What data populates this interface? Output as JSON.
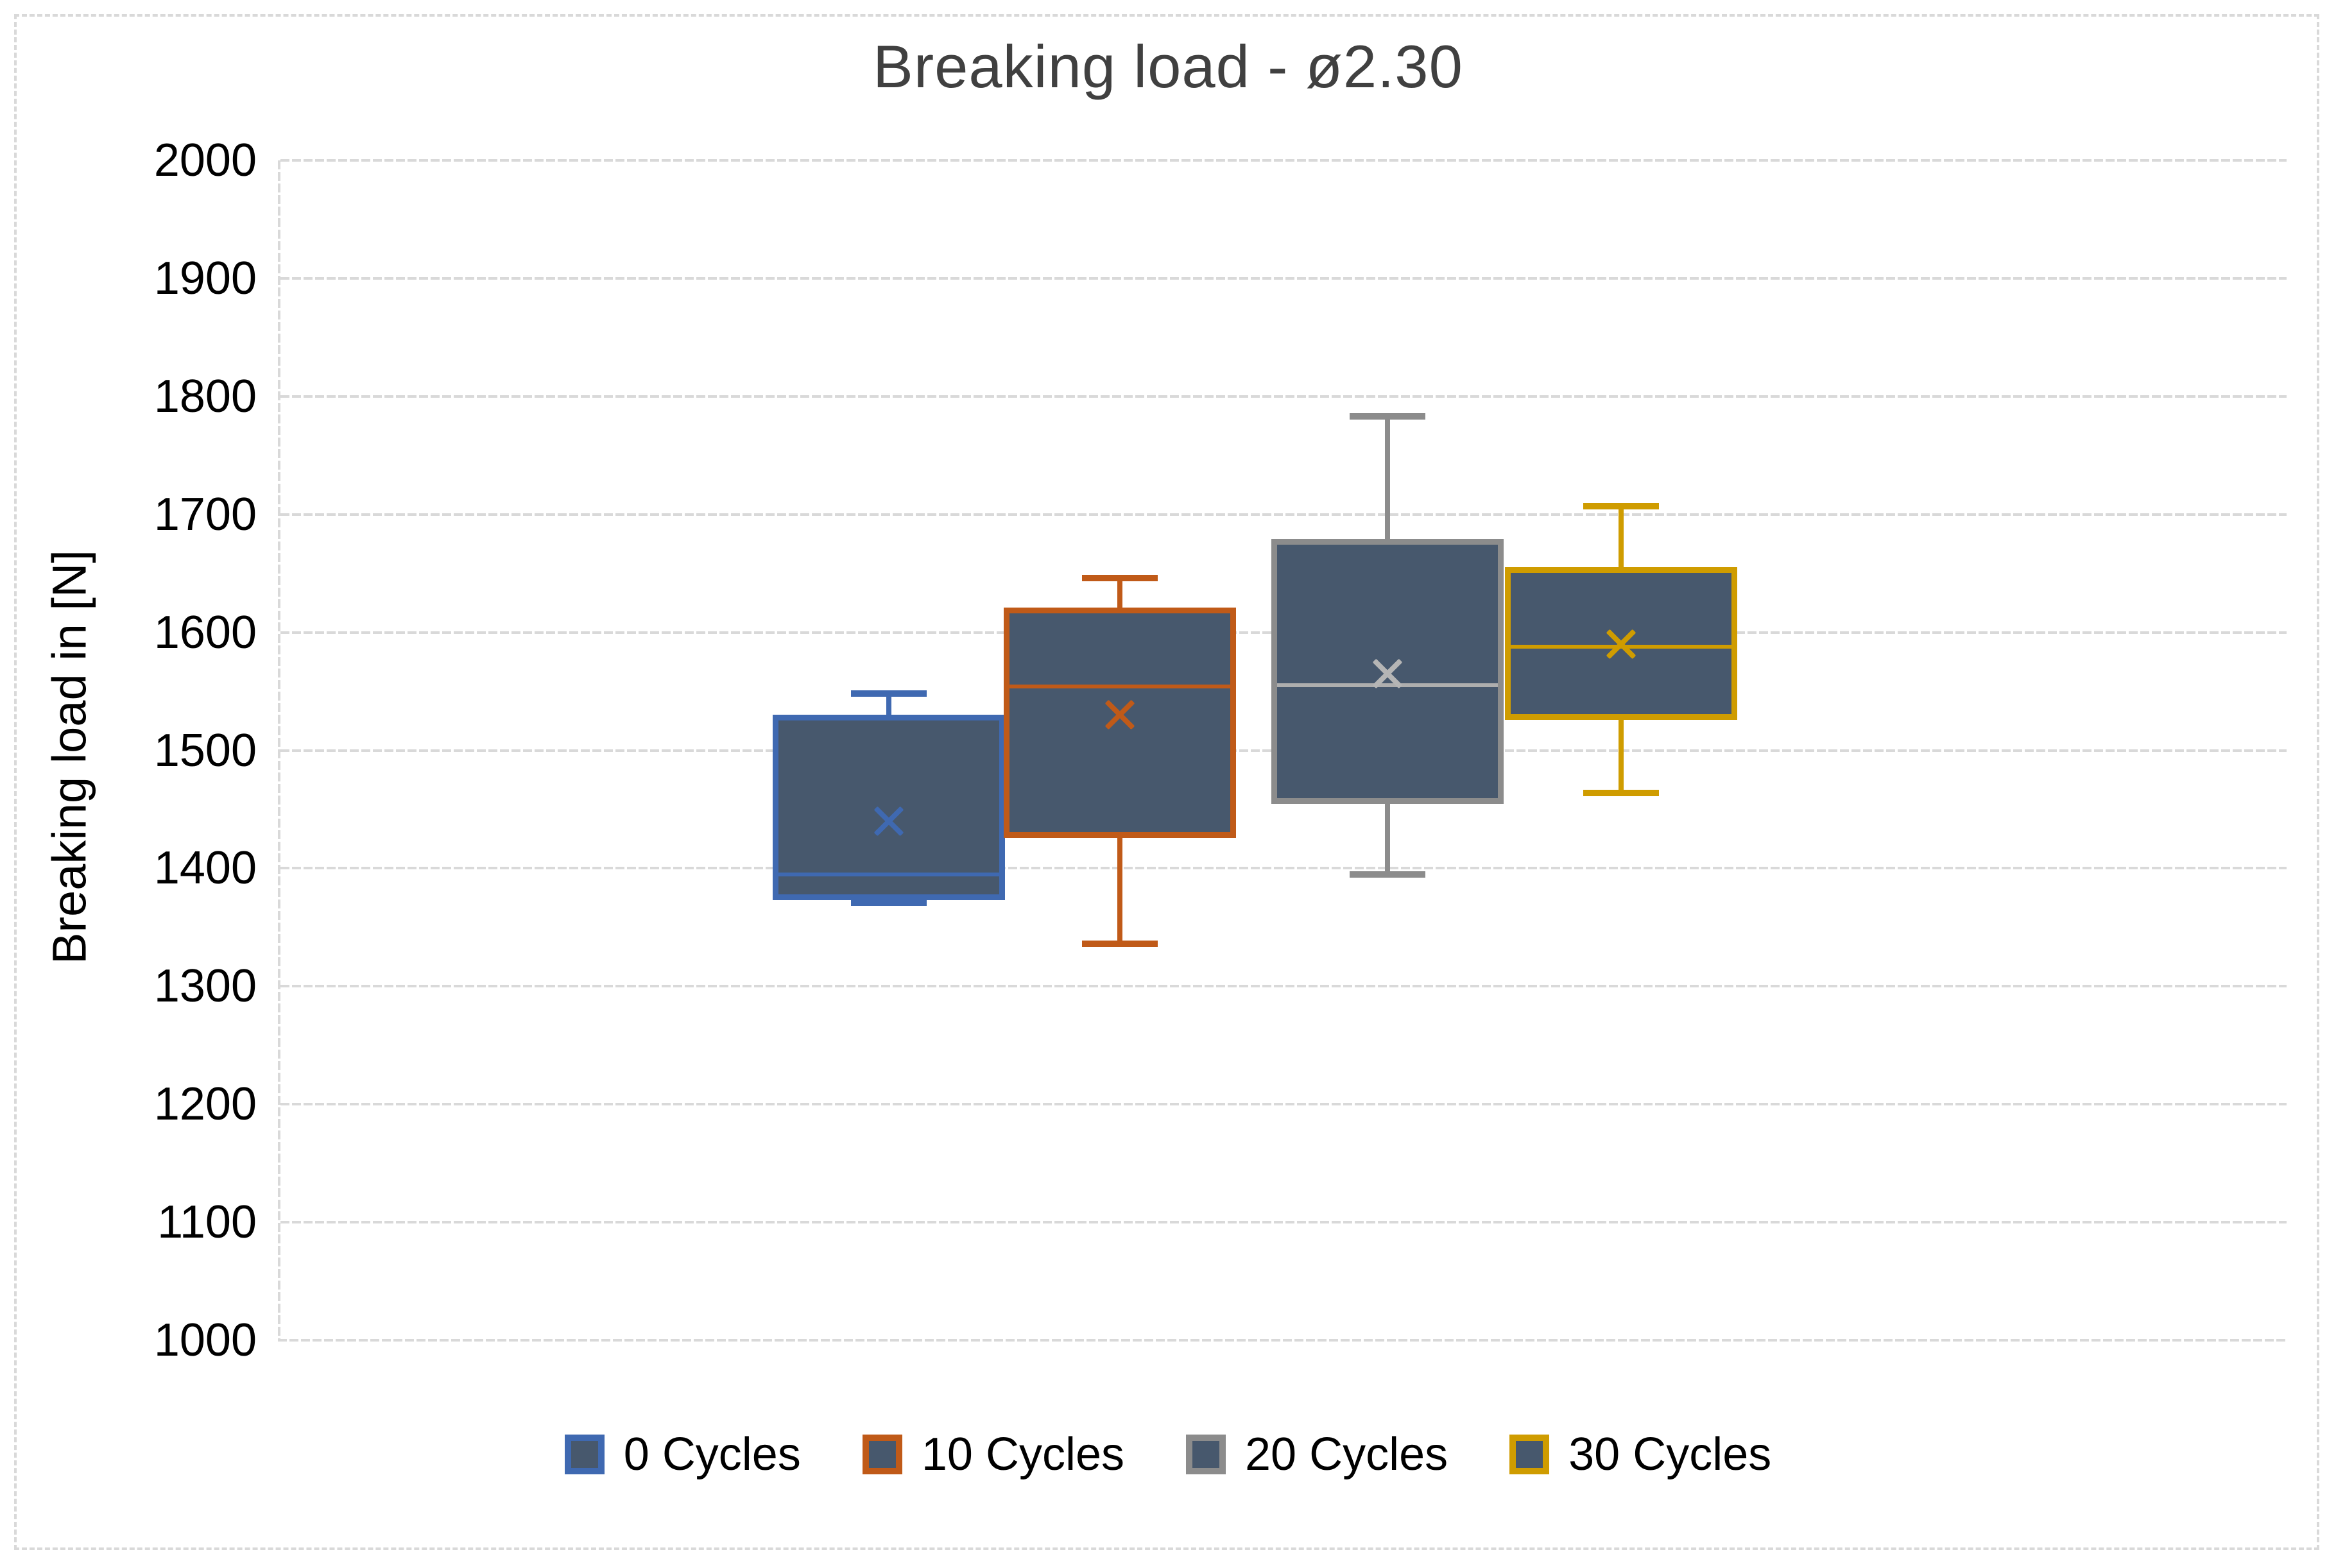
{
  "chart_data": {
    "type": "box",
    "title": "Breaking load - ø2.30",
    "ylabel": "Breaking load in [N]",
    "xlabel": "",
    "ylim": [
      1000,
      2000
    ],
    "ytick_step": 100,
    "yticks": [
      2000,
      1900,
      1800,
      1700,
      1600,
      1500,
      1400,
      1300,
      1200,
      1100,
      1000
    ],
    "grid": "horizontal light-gray dashed gridlines every 100 N",
    "legend_position": "bottom center",
    "categories": [
      "0 Cycles",
      "10 Cycles",
      "20 Cycles",
      "30 Cycles"
    ],
    "series": [
      {
        "name": "0 Cycles",
        "border_color": "#3f69b1",
        "fill_color": "#47586d",
        "median_color": "#3f69b1",
        "mean_color": "#3f69b1",
        "stats": {
          "min": 1371,
          "q1": 1375,
          "median": 1395,
          "mean": 1440,
          "q3": 1528,
          "max": 1548
        }
      },
      {
        "name": "10 Cycles",
        "border_color": "#c05a18",
        "fill_color": "#47586d",
        "median_color": "#c05a18",
        "mean_color": "#c05a18",
        "stats": {
          "min": 1336,
          "q1": 1428,
          "median": 1554,
          "mean": 1530,
          "q3": 1619,
          "max": 1646
        }
      },
      {
        "name": "20 Cycles",
        "border_color": "#8c8c8c",
        "fill_color": "#47586d",
        "median_color": "#aeaeae",
        "mean_color": "#b5b5b5",
        "stats": {
          "min": 1395,
          "q1": 1457,
          "median": 1555,
          "mean": 1565,
          "q3": 1677,
          "max": 1783
        }
      },
      {
        "name": "30 Cycles",
        "border_color": "#cf9c00",
        "fill_color": "#47586d",
        "median_color": "#cf9c00",
        "mean_color": "#cf9c00",
        "stats": {
          "min": 1464,
          "q1": 1528,
          "median": 1588,
          "mean": 1590,
          "q3": 1653,
          "max": 1707
        }
      }
    ]
  },
  "colors": {
    "gridline": "#d9d9d9",
    "axis_line": "#d9d9d9",
    "canvas_border": "#d9d9d9",
    "title_text": "#404040",
    "tick_text": "#000000",
    "background": "#ffffff"
  }
}
